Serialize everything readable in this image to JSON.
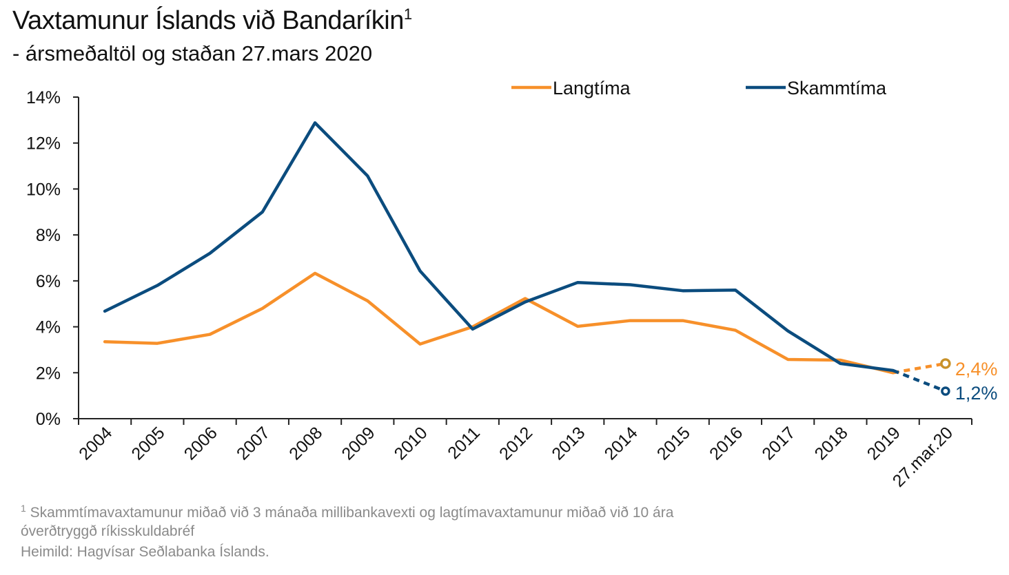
{
  "header": {
    "title": "Vaxtamunur Íslands við Bandaríkin",
    "title_sup": "1",
    "subtitle": "- ársmeðaltöl og staðan 27.mars 2020"
  },
  "footnotes": {
    "note_sup": "1",
    "note_line1": "Skammtímavaxtamunur miðað við 3 mánaða millibankavexti og lagtímavaxtamunur miðað við 10 ára",
    "note_line2": "óverðtryggð ríkisskuldabréf",
    "source": "Heimild: Hagvísar Seðlabanka Íslands."
  },
  "chart_data": {
    "type": "line",
    "title": "Vaxtamunur Íslands við Bandaríkin",
    "subtitle": "- ársmeðaltöl og staðan 27.mars 2020",
    "categories": [
      "2004",
      "2005",
      "2006",
      "2007",
      "2008",
      "2009",
      "2010",
      "2011",
      "2012",
      "2013",
      "2014",
      "2015",
      "2016",
      "2017",
      "2018",
      "2019",
      "27.mar.20"
    ],
    "ylim": [
      0,
      14
    ],
    "yticks": [
      0,
      2,
      4,
      6,
      8,
      10,
      12,
      14
    ],
    "ytick_labels": [
      "0%",
      "2%",
      "4%",
      "6%",
      "8%",
      "10%",
      "12%",
      "14%"
    ],
    "legend_position": "top-right",
    "series": [
      {
        "name": "Langtíma",
        "color": "#F7902A",
        "values": [
          3.35,
          3.28,
          3.67,
          4.8,
          6.33,
          5.13,
          3.25,
          4.0,
          5.23,
          4.02,
          4.27,
          4.27,
          3.85,
          2.58,
          2.55,
          2.0,
          2.4
        ],
        "dashed_from_index": 15,
        "end_label": "2,4%"
      },
      {
        "name": "Skammtíma",
        "color": "#0B4C7E",
        "values": [
          4.68,
          5.8,
          7.2,
          9.0,
          12.88,
          10.57,
          6.43,
          3.9,
          5.08,
          5.93,
          5.83,
          5.57,
          5.6,
          3.82,
          2.4,
          2.1,
          1.2
        ],
        "dashed_from_index": 15,
        "end_label": "1,2%"
      }
    ]
  }
}
